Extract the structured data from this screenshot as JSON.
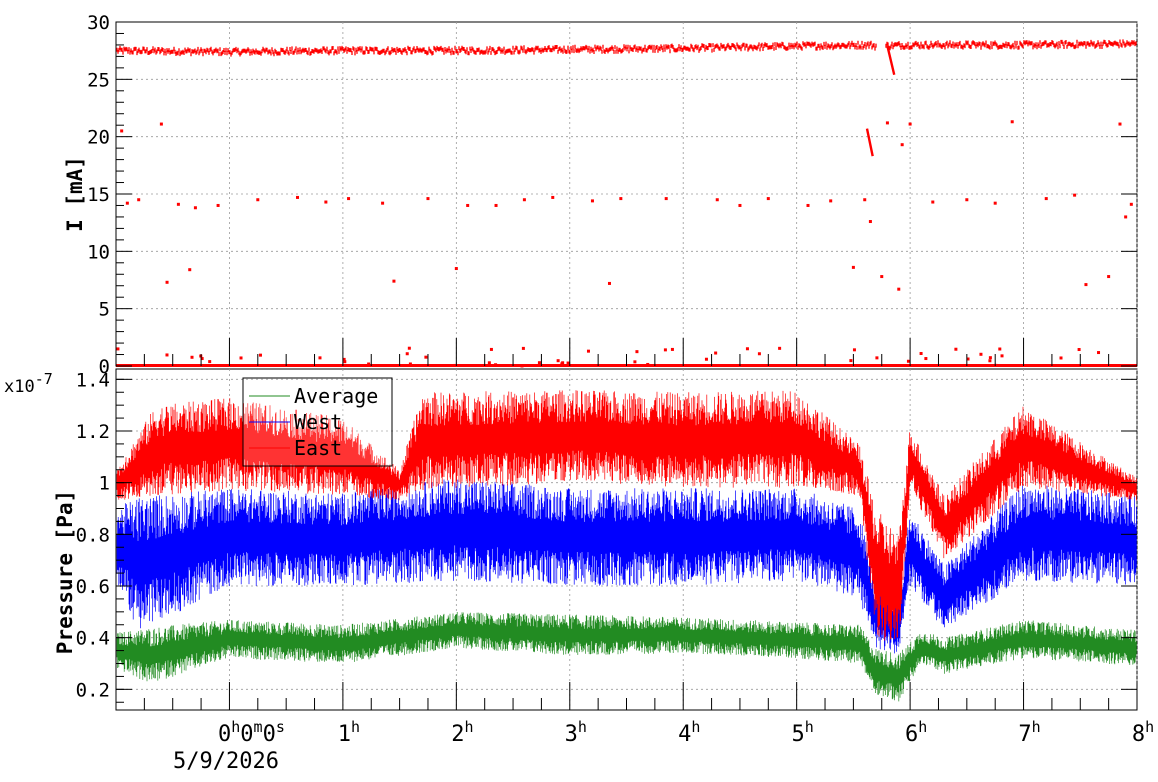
{
  "chart_data": [
    {
      "type": "scatter",
      "title": "",
      "ylabel": "I [mA]",
      "ylim": [
        0,
        30
      ],
      "yticks": [
        "0",
        "5",
        "10",
        "15",
        "20",
        "25",
        "30"
      ],
      "grid": true,
      "series": [
        {
          "color": "#ff0000",
          "baseline": [
            {
              "x": -1.0,
              "y": 27.5
            },
            {
              "x": 0,
              "y": 27.4
            },
            {
              "x": 1.0,
              "y": 27.5
            },
            {
              "x": 2.0,
              "y": 27.5
            },
            {
              "x": 3.0,
              "y": 27.6
            },
            {
              "x": 4.0,
              "y": 27.7
            },
            {
              "x": 5.0,
              "y": 27.9
            },
            {
              "x": 5.65,
              "y": 28.0
            },
            {
              "x": 5.7,
              "y": 27.9
            },
            {
              "x": 6.0,
              "y": 28.0
            },
            {
              "x": 7.0,
              "y": 28.0
            },
            {
              "x": 8.0,
              "y": 28.1
            }
          ],
          "zero_line": 0,
          "outliers": [
            {
              "x": -0.95,
              "y": 20.5
            },
            {
              "x": -0.9,
              "y": 14.2
            },
            {
              "x": -0.8,
              "y": 14.5
            },
            {
              "x": -0.6,
              "y": 21.1
            },
            {
              "x": -0.55,
              "y": 7.3
            },
            {
              "x": -0.45,
              "y": 14.1
            },
            {
              "x": -0.35,
              "y": 8.4
            },
            {
              "x": -0.3,
              "y": 13.8
            },
            {
              "x": -0.1,
              "y": 14.0
            },
            {
              "x": 0.25,
              "y": 14.5
            },
            {
              "x": 0.6,
              "y": 14.7
            },
            {
              "x": 0.85,
              "y": 14.3
            },
            {
              "x": 1.05,
              "y": 14.6
            },
            {
              "x": 1.35,
              "y": 14.2
            },
            {
              "x": 1.45,
              "y": 7.4
            },
            {
              "x": 1.75,
              "y": 14.6
            },
            {
              "x": 2.0,
              "y": 8.5
            },
            {
              "x": 2.1,
              "y": 14.0
            },
            {
              "x": 2.35,
              "y": 14.0
            },
            {
              "x": 2.6,
              "y": 14.5
            },
            {
              "x": 2.85,
              "y": 14.7
            },
            {
              "x": 3.2,
              "y": 14.4
            },
            {
              "x": 3.35,
              "y": 7.2
            },
            {
              "x": 3.45,
              "y": 14.6
            },
            {
              "x": 3.85,
              "y": 14.6
            },
            {
              "x": 4.3,
              "y": 14.5
            },
            {
              "x": 4.5,
              "y": 14.0
            },
            {
              "x": 4.75,
              "y": 14.6
            },
            {
              "x": 5.1,
              "y": 14.0
            },
            {
              "x": 5.3,
              "y": 14.4
            },
            {
              "x": 5.5,
              "y": 8.6
            },
            {
              "x": 5.6,
              "y": 14.5
            },
            {
              "x": 5.65,
              "y": 12.6
            },
            {
              "x": 5.75,
              "y": 7.8
            },
            {
              "x": 5.8,
              "y": 21.2
            },
            {
              "x": 5.9,
              "y": 6.7
            },
            {
              "x": 5.93,
              "y": 19.3
            },
            {
              "x": 6.0,
              "y": 21.1
            },
            {
              "x": 6.2,
              "y": 14.3
            },
            {
              "x": 6.5,
              "y": 14.5
            },
            {
              "x": 6.75,
              "y": 14.2
            },
            {
              "x": 6.9,
              "y": 21.3
            },
            {
              "x": 7.2,
              "y": 14.6
            },
            {
              "x": 7.45,
              "y": 14.9
            },
            {
              "x": 7.55,
              "y": 7.1
            },
            {
              "x": 7.75,
              "y": 7.8
            },
            {
              "x": 7.85,
              "y": 21.1
            },
            {
              "x": 7.9,
              "y": 13.0
            },
            {
              "x": 7.95,
              "y": 14.1
            }
          ],
          "drops": [
            {
              "x": [
                5.62,
                5.67
              ],
              "y": [
                20.7,
                18.3
              ]
            },
            {
              "x": [
                5.8,
                5.86
              ],
              "y": [
                27.9,
                25.4
              ]
            }
          ]
        }
      ]
    },
    {
      "type": "line",
      "title": "",
      "ylabel": "Pressure [Pa]",
      "exponent_label": "x10",
      "exponent_value": "-7",
      "ylim": [
        0.12,
        1.44
      ],
      "yticks": [
        "0.2",
        "0.4",
        "0.6",
        "0.8",
        "1",
        "1.2",
        "1.4"
      ],
      "grid": true,
      "x_time_ticks": [
        {
          "x": 0,
          "label": "0",
          "sup": "h",
          "extra": [
            "0",
            "m",
            "0",
            "s"
          ]
        },
        {
          "x": 1,
          "label": "1",
          "sup": "h"
        },
        {
          "x": 2,
          "label": "2",
          "sup": "h"
        },
        {
          "x": 3,
          "label": "3",
          "sup": "h"
        },
        {
          "x": 4,
          "label": "4",
          "sup": "h"
        },
        {
          "x": 5,
          "label": "5",
          "sup": "h"
        },
        {
          "x": 6,
          "label": "6",
          "sup": "h"
        },
        {
          "x": 7,
          "label": "7",
          "sup": "h"
        },
        {
          "x": 8,
          "label": "8",
          "sup": "h"
        }
      ],
      "x_date_label": "5/9/2026",
      "xlim": [
        -1.0,
        8.0
      ],
      "legend_position": "top-left",
      "series": [
        {
          "name": "Average",
          "color": "#228b22",
          "profile": [
            {
              "x": -1.0,
              "lo": 0.28,
              "hi": 0.42
            },
            {
              "x": -0.7,
              "lo": 0.22,
              "hi": 0.44
            },
            {
              "x": 0,
              "lo": 0.32,
              "hi": 0.47
            },
            {
              "x": 1.0,
              "lo": 0.3,
              "hi": 0.45
            },
            {
              "x": 2.0,
              "lo": 0.36,
              "hi": 0.5
            },
            {
              "x": 3.0,
              "lo": 0.33,
              "hi": 0.49
            },
            {
              "x": 4.0,
              "lo": 0.34,
              "hi": 0.48
            },
            {
              "x": 5.0,
              "lo": 0.32,
              "hi": 0.46
            },
            {
              "x": 5.55,
              "lo": 0.3,
              "hi": 0.45
            },
            {
              "x": 5.7,
              "lo": 0.18,
              "hi": 0.36
            },
            {
              "x": 5.9,
              "lo": 0.15,
              "hi": 0.34
            },
            {
              "x": 6.1,
              "lo": 0.3,
              "hi": 0.43
            },
            {
              "x": 6.3,
              "lo": 0.26,
              "hi": 0.4
            },
            {
              "x": 7.0,
              "lo": 0.32,
              "hi": 0.47
            },
            {
              "x": 8.0,
              "lo": 0.29,
              "hi": 0.43
            }
          ]
        },
        {
          "name": "West",
          "color": "#0000ff",
          "profile": [
            {
              "x": -1.0,
              "lo": 0.62,
              "hi": 0.9
            },
            {
              "x": -0.8,
              "lo": 0.42,
              "hi": 0.95
            },
            {
              "x": 0,
              "lo": 0.6,
              "hi": 0.98
            },
            {
              "x": 1.0,
              "lo": 0.6,
              "hi": 0.96
            },
            {
              "x": 2.0,
              "lo": 0.62,
              "hi": 1.02
            },
            {
              "x": 3.0,
              "lo": 0.6,
              "hi": 0.98
            },
            {
              "x": 4.0,
              "lo": 0.6,
              "hi": 0.98
            },
            {
              "x": 5.0,
              "lo": 0.62,
              "hi": 0.98
            },
            {
              "x": 5.55,
              "lo": 0.55,
              "hi": 0.9
            },
            {
              "x": 5.7,
              "lo": 0.36,
              "hi": 0.6
            },
            {
              "x": 5.9,
              "lo": 0.33,
              "hi": 0.55
            },
            {
              "x": 6.0,
              "lo": 0.6,
              "hi": 0.9
            },
            {
              "x": 6.3,
              "lo": 0.43,
              "hi": 0.68
            },
            {
              "x": 7.0,
              "lo": 0.62,
              "hi": 1.0
            },
            {
              "x": 8.0,
              "lo": 0.6,
              "hi": 0.95
            }
          ]
        },
        {
          "name": "East",
          "color": "#ff0000",
          "profile": [
            {
              "x": -1.0,
              "lo": 0.93,
              "hi": 1.05
            },
            {
              "x": -0.65,
              "lo": 0.95,
              "hi": 1.3
            },
            {
              "x": 0,
              "lo": 0.97,
              "hi": 1.33
            },
            {
              "x": 1.0,
              "lo": 0.95,
              "hi": 1.25
            },
            {
              "x": 1.5,
              "lo": 0.93,
              "hi": 1.05
            },
            {
              "x": 1.7,
              "lo": 0.97,
              "hi": 1.35
            },
            {
              "x": 3.0,
              "lo": 1.0,
              "hi": 1.36
            },
            {
              "x": 4.0,
              "lo": 0.98,
              "hi": 1.35
            },
            {
              "x": 5.0,
              "lo": 0.98,
              "hi": 1.36
            },
            {
              "x": 5.55,
              "lo": 0.95,
              "hi": 1.15
            },
            {
              "x": 5.7,
              "lo": 0.4,
              "hi": 0.9
            },
            {
              "x": 5.9,
              "lo": 0.36,
              "hi": 0.8
            },
            {
              "x": 6.0,
              "lo": 0.98,
              "hi": 1.22
            },
            {
              "x": 6.3,
              "lo": 0.7,
              "hi": 0.95
            },
            {
              "x": 7.0,
              "lo": 0.98,
              "hi": 1.3
            },
            {
              "x": 8.0,
              "lo": 0.93,
              "hi": 1.02
            }
          ]
        }
      ]
    }
  ]
}
